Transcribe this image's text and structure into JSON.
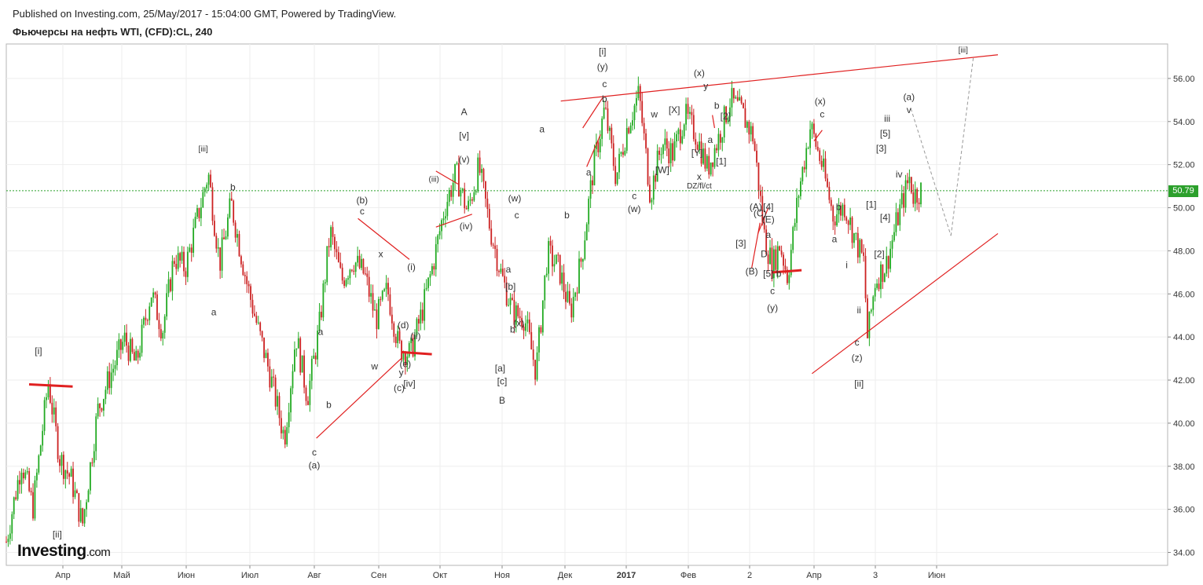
{
  "header": {
    "published": "Published on Investing.com, 25/May/2017 - 15:04:00 GMT, Powered by TradingView.",
    "symbol": "Фьючерсы на нефть WTI, (CFD):CL, 240"
  },
  "logo": {
    "name": "Investing",
    "suffix": ".com"
  },
  "chart_data": {
    "type": "candlestick",
    "title": "Фьючерсы на нефть WTI, (CFD):CL, 240",
    "ylim": [
      33.4,
      57.6
    ],
    "y_ticks": [
      "34.00",
      "36.00",
      "38.00",
      "40.00",
      "42.00",
      "44.00",
      "46.00",
      "48.00",
      "50.00",
      "52.00",
      "54.00",
      "56.00"
    ],
    "x_ticks": [
      {
        "label": "Апр",
        "bold": false
      },
      {
        "label": "Май",
        "bold": false
      },
      {
        "label": "Июн",
        "bold": false
      },
      {
        "label": "Июл",
        "bold": false
      },
      {
        "label": "Авг",
        "bold": false
      },
      {
        "label": "Сен",
        "bold": false
      },
      {
        "label": "Окт",
        "bold": false
      },
      {
        "label": "Ноя",
        "bold": false
      },
      {
        "label": "Дек",
        "bold": false
      },
      {
        "label": "2017",
        "bold": true
      },
      {
        "label": "Фев",
        "bold": false
      },
      {
        "label": "2",
        "bold": false
      },
      {
        "label": "Апр",
        "bold": false
      },
      {
        "label": "3",
        "bold": false
      },
      {
        "label": "Июн",
        "bold": false
      }
    ],
    "current_price": "50.79",
    "current_price_value": 50.79,
    "colors": {
      "up": "#22aa22",
      "down": "#cc2222",
      "trendline": "#e02020",
      "price_line": "#2ca02c",
      "projection": "#999999"
    },
    "price_path": [
      [
        0,
        34.5
      ],
      [
        4,
        38.2
      ],
      [
        7,
        36.1
      ],
      [
        11,
        41.9
      ],
      [
        14,
        38.4
      ],
      [
        17,
        37.4
      ],
      [
        20,
        35.3
      ],
      [
        24,
        40.6
      ],
      [
        27,
        42.1
      ],
      [
        31,
        43.9
      ],
      [
        34,
        42.7
      ],
      [
        38,
        46.1
      ],
      [
        41,
        44.3
      ],
      [
        44,
        47.7
      ],
      [
        47,
        47.2
      ],
      [
        50,
        49.4
      ],
      [
        53,
        51.6
      ],
      [
        56,
        47.4
      ],
      [
        59,
        50.2
      ],
      [
        63,
        46.6
      ],
      [
        66,
        44.4
      ],
      [
        69,
        42.4
      ],
      [
        73,
        39.3
      ],
      [
        76,
        44.1
      ],
      [
        79,
        41.2
      ],
      [
        82,
        44.3
      ],
      [
        85,
        48.9
      ],
      [
        88,
        46.6
      ],
      [
        91,
        47.6
      ],
      [
        94,
        46.9
      ],
      [
        97,
        44.8
      ],
      [
        100,
        46.2
      ],
      [
        103,
        43.5
      ],
      [
        106,
        43.2
      ],
      [
        109,
        45.1
      ],
      [
        112,
        47.4
      ],
      [
        115,
        50.0
      ],
      [
        118,
        51.6
      ],
      [
        121,
        49.8
      ],
      [
        124,
        51.9
      ],
      [
        127,
        49.0
      ],
      [
        130,
        46.8
      ],
      [
        133,
        45.1
      ],
      [
        136,
        44.9
      ],
      [
        139,
        42.4
      ],
      [
        142,
        47.9
      ],
      [
        145,
        47.2
      ],
      [
        148,
        45.1
      ],
      [
        151,
        47.7
      ],
      [
        154,
        51.8
      ],
      [
        157,
        54.6
      ],
      [
        160,
        51.4
      ],
      [
        163,
        53.8
      ],
      [
        166,
        55.3
      ],
      [
        169,
        50.6
      ],
      [
        172,
        53.0
      ],
      [
        175,
        52.5
      ],
      [
        178,
        54.3
      ],
      [
        181,
        53.4
      ],
      [
        184,
        51.8
      ],
      [
        187,
        53.3
      ],
      [
        190,
        55.0
      ],
      [
        193,
        54.4
      ],
      [
        196,
        53.3
      ],
      [
        199,
        48.6
      ],
      [
        201,
        47.3
      ],
      [
        203,
        48.3
      ],
      [
        205,
        46.8
      ],
      [
        208,
        50.8
      ],
      [
        211,
        53.8
      ],
      [
        214,
        52.0
      ],
      [
        217,
        49.6
      ],
      [
        220,
        50.1
      ],
      [
        223,
        48.4
      ],
      [
        225,
        47.5
      ],
      [
        226,
        43.9
      ],
      [
        228,
        46.6
      ],
      [
        231,
        47.4
      ],
      [
        234,
        49.6
      ],
      [
        237,
        51.4
      ],
      [
        238,
        50.6
      ],
      [
        240,
        50.8
      ]
    ],
    "wave_labels": [
      {
        "t": "[i]",
        "x": "2016-03-19",
        "y": 43.2
      },
      {
        "t": "[ii]",
        "x": "2016-03-29",
        "y": 34.7
      },
      {
        "t": "[iii]",
        "x": "2016-06-09",
        "y": 52.6
      },
      {
        "t": "b",
        "x": "2016-06-23",
        "y": 50.8
      },
      {
        "t": "a",
        "x": "2016-06-14",
        "y": 45.0
      },
      {
        "t": "c",
        "x": "2016-08-01",
        "y": 38.5
      },
      {
        "t": "(a)",
        "x": "2016-08-01",
        "y": 37.9
      },
      {
        "t": "b",
        "x": "2016-08-08",
        "y": 40.7
      },
      {
        "t": "a",
        "x": "2016-08-04",
        "y": 44.1
      },
      {
        "t": "(b)",
        "x": "2016-08-24",
        "y": 50.2
      },
      {
        "t": "c",
        "x": "2016-08-24",
        "y": 49.7
      },
      {
        "t": "x",
        "x": "2016-09-02",
        "y": 47.7
      },
      {
        "t": "w",
        "x": "2016-08-30",
        "y": 42.5
      },
      {
        "t": "y",
        "x": "2016-09-12",
        "y": 42.2
      },
      {
        "t": "(c)",
        "x": "2016-09-11",
        "y": 41.5
      },
      {
        "t": "(e)",
        "x": "2016-09-14",
        "y": 42.6
      },
      {
        "t": "(d)",
        "x": "2016-09-13",
        "y": 44.4
      },
      {
        "t": "[iv]",
        "x": "2016-09-16",
        "y": 41.7
      },
      {
        "t": "(i)",
        "x": "2016-09-17",
        "y": 47.1
      },
      {
        "t": "(ii)",
        "x": "2016-09-19",
        "y": 43.9
      },
      {
        "t": "(iii)",
        "x": "2016-09-28",
        "y": 51.2
      },
      {
        "t": "(iv)",
        "x": "2016-10-14",
        "y": 49.0
      },
      {
        "t": "(v)",
        "x": "2016-10-13",
        "y": 52.1
      },
      {
        "t": "[v]",
        "x": "2016-10-13",
        "y": 53.2
      },
      {
        "t": "A",
        "x": "2016-10-13",
        "y": 54.3
      },
      {
        "t": "[b]",
        "x": "2016-11-05",
        "y": 46.2
      },
      {
        "t": "[a]",
        "x": "2016-10-31",
        "y": 42.4
      },
      {
        "t": "[c]",
        "x": "2016-11-01",
        "y": 41.8
      },
      {
        "t": "B",
        "x": "2016-11-01",
        "y": 40.9
      },
      {
        "t": "a",
        "x": "2016-11-04",
        "y": 47.0
      },
      {
        "t": "b",
        "x": "2016-11-06",
        "y": 44.2
      },
      {
        "t": "(w)",
        "x": "2016-11-07",
        "y": 50.3
      },
      {
        "t": "c",
        "x": "2016-11-08",
        "y": 49.5
      },
      {
        "t": "(x)",
        "x": "2016-11-09",
        "y": 44.5
      },
      {
        "t": "a",
        "x": "2016-11-20",
        "y": 53.5
      },
      {
        "t": "b",
        "x": "2016-12-02",
        "y": 49.5
      },
      {
        "t": "a",
        "x": "2016-12-13",
        "y": 51.5
      },
      {
        "t": "[i]",
        "x": "2016-12-20",
        "y": 57.1
      },
      {
        "t": "(y)",
        "x": "2016-12-20",
        "y": 56.4
      },
      {
        "t": "c",
        "x": "2016-12-21",
        "y": 55.6
      },
      {
        "t": "b",
        "x": "2016-12-21",
        "y": 54.9
      },
      {
        "t": "c",
        "x": "2017-01-05",
        "y": 50.4
      },
      {
        "t": "(w)",
        "x": "2017-01-05",
        "y": 49.8
      },
      {
        "t": "w",
        "x": "2017-01-15",
        "y": 54.2
      },
      {
        "t": "[W]",
        "x": "2017-01-19",
        "y": 51.6
      },
      {
        "t": "[X]",
        "x": "2017-01-25",
        "y": 54.4
      },
      {
        "t": "[Y]",
        "x": "2017-02-05",
        "y": 52.4
      },
      {
        "t": "x",
        "x": "2017-02-06",
        "y": 51.3
      },
      {
        "t": "DZ/fl/ct",
        "x": "2017-02-06",
        "y": 50.9
      },
      {
        "t": "(x)",
        "x": "2017-02-06",
        "y": 56.1
      },
      {
        "t": "y",
        "x": "2017-02-09",
        "y": 55.5
      },
      {
        "t": "a",
        "x": "2017-02-11",
        "y": 53.0
      },
      {
        "t": "b",
        "x": "2017-02-14",
        "y": 54.6
      },
      {
        "t": "[2]",
        "x": "2017-02-18",
        "y": 54.1
      },
      {
        "t": "[1]",
        "x": "2017-02-16",
        "y": 52.0
      },
      {
        "t": "[3]",
        "x": "2017-02-25",
        "y": 48.2
      },
      {
        "t": "(A)",
        "x": "2017-03-04",
        "y": 49.9
      },
      {
        "t": "(C)",
        "x": "2017-03-06",
        "y": 49.6
      },
      {
        "t": "(E)",
        "x": "2017-03-10",
        "y": 49.3
      },
      {
        "t": "[4]",
        "x": "2017-03-10",
        "y": 49.9
      },
      {
        "t": "a",
        "x": "2017-03-10",
        "y": 48.6
      },
      {
        "t": "D",
        "x": "2017-03-08",
        "y": 47.7
      },
      {
        "t": "(B)",
        "x": "2017-03-02",
        "y": 46.9
      },
      {
        "t": "[5]",
        "x": "2017-03-10",
        "y": 46.8
      },
      {
        "t": "b",
        "x": "2017-03-15",
        "y": 46.8
      },
      {
        "t": "c",
        "x": "2017-03-12",
        "y": 46.0
      },
      {
        "t": "(y)",
        "x": "2017-03-12",
        "y": 45.2
      },
      {
        "t": "(x)",
        "x": "2017-04-04",
        "y": 54.8
      },
      {
        "t": "c",
        "x": "2017-04-05",
        "y": 54.2
      },
      {
        "t": "b",
        "x": "2017-04-13",
        "y": 49.9
      },
      {
        "t": "a",
        "x": "2017-04-11",
        "y": 48.4
      },
      {
        "t": "i",
        "x": "2017-04-17",
        "y": 47.2
      },
      {
        "t": "ii",
        "x": "2017-04-23",
        "y": 45.1
      },
      {
        "t": "c",
        "x": "2017-04-22",
        "y": 43.6
      },
      {
        "t": "(z)",
        "x": "2017-04-22",
        "y": 42.9
      },
      {
        "t": "[ii]",
        "x": "2017-04-23",
        "y": 41.7
      },
      {
        "t": "[1]",
        "x": "2017-04-29",
        "y": 50.0
      },
      {
        "t": "[2]",
        "x": "2017-05-03",
        "y": 47.7
      },
      {
        "t": "[3]",
        "x": "2017-05-04",
        "y": 52.6
      },
      {
        "t": "[4]",
        "x": "2017-05-06",
        "y": 49.4
      },
      {
        "t": "[5]",
        "x": "2017-05-06",
        "y": 53.3
      },
      {
        "t": "iii",
        "x": "2017-05-07",
        "y": 54.0
      },
      {
        "t": "iv",
        "x": "2017-05-13",
        "y": 51.4
      },
      {
        "t": "(a)",
        "x": "2017-05-18",
        "y": 55.0
      },
      {
        "t": "v",
        "x": "2017-05-18",
        "y": 54.4
      },
      {
        "t": "[iii]",
        "x": "2017-06-14",
        "y": 57.2
      }
    ]
  }
}
